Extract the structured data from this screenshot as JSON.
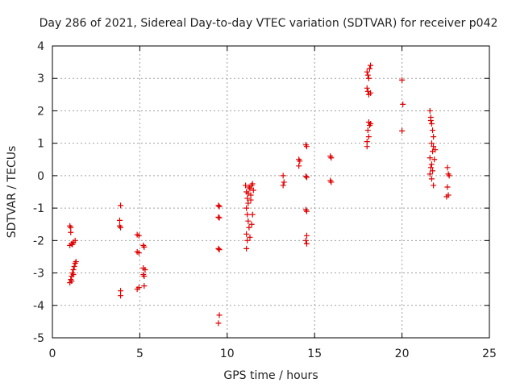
{
  "chart_data": {
    "type": "scatter",
    "title": "Day 286 of 2021, Sidereal Day-to-day VTEC variation (SDTVAR) for receiver p042",
    "xlabel": "GPS time / hours",
    "ylabel": "SDTVAR / TECUs",
    "xlim": [
      0,
      25
    ],
    "ylim": [
      -5,
      4
    ],
    "xticks": [
      0,
      5,
      10,
      15,
      20,
      25
    ],
    "yticks": [
      -5,
      -4,
      -3,
      -2,
      -1,
      0,
      1,
      2,
      3,
      4
    ],
    "grid": true,
    "marker": "+",
    "color": "#e00000",
    "series": [
      {
        "name": "p042",
        "points": [
          [
            1.0,
            -1.55
          ],
          [
            1.05,
            -1.6
          ],
          [
            1.05,
            -1.75
          ],
          [
            1.0,
            -2.15
          ],
          [
            1.1,
            -2.1
          ],
          [
            1.2,
            -2.05
          ],
          [
            1.3,
            -2.0
          ],
          [
            1.15,
            -2.12
          ],
          [
            1.0,
            -3.3
          ],
          [
            1.05,
            -3.2
          ],
          [
            1.1,
            -3.1
          ],
          [
            1.15,
            -3.0
          ],
          [
            1.2,
            -2.9
          ],
          [
            1.25,
            -2.8
          ],
          [
            1.3,
            -2.7
          ],
          [
            1.35,
            -2.65
          ],
          [
            1.1,
            -3.25
          ],
          [
            1.2,
            -3.05
          ],
          [
            3.9,
            -0.92
          ],
          [
            3.85,
            -1.38
          ],
          [
            3.9,
            -1.6
          ],
          [
            3.85,
            -1.55
          ],
          [
            3.9,
            -3.55
          ],
          [
            3.9,
            -3.7
          ],
          [
            4.85,
            -1.82
          ],
          [
            4.95,
            -1.85
          ],
          [
            4.85,
            -2.35
          ],
          [
            4.95,
            -2.38
          ],
          [
            5.2,
            -2.15
          ],
          [
            5.25,
            -2.2
          ],
          [
            4.85,
            -3.5
          ],
          [
            4.95,
            -3.45
          ],
          [
            5.2,
            -2.85
          ],
          [
            5.3,
            -2.9
          ],
          [
            5.2,
            -3.05
          ],
          [
            5.25,
            -3.1
          ],
          [
            5.25,
            -3.4
          ],
          [
            9.5,
            -0.92
          ],
          [
            9.55,
            -0.95
          ],
          [
            9.5,
            -1.28
          ],
          [
            9.55,
            -1.3
          ],
          [
            9.5,
            -2.25
          ],
          [
            9.55,
            -2.28
          ],
          [
            9.55,
            -4.3
          ],
          [
            9.5,
            -4.55
          ],
          [
            11.05,
            -0.3
          ],
          [
            11.1,
            -0.5
          ],
          [
            11.15,
            -0.7
          ],
          [
            11.2,
            -0.85
          ],
          [
            11.1,
            -1.0
          ],
          [
            11.15,
            -1.2
          ],
          [
            11.2,
            -1.4
          ],
          [
            11.25,
            -1.6
          ],
          [
            11.1,
            -1.8
          ],
          [
            11.15,
            -2.0
          ],
          [
            11.1,
            -2.25
          ],
          [
            11.3,
            -0.4
          ],
          [
            11.35,
            -0.6
          ],
          [
            11.4,
            -0.3
          ],
          [
            11.45,
            -1.2
          ],
          [
            11.4,
            -1.5
          ],
          [
            11.3,
            -1.9
          ],
          [
            11.25,
            -0.35
          ],
          [
            11.35,
            -0.75
          ],
          [
            11.2,
            -0.55
          ],
          [
            11.5,
            -0.45
          ],
          [
            11.45,
            -0.25
          ],
          [
            13.2,
            0.0
          ],
          [
            13.25,
            -0.2
          ],
          [
            13.2,
            -0.3
          ],
          [
            14.1,
            0.5
          ],
          [
            14.15,
            0.45
          ],
          [
            14.1,
            0.3
          ],
          [
            14.5,
            0.95
          ],
          [
            14.55,
            0.9
          ],
          [
            14.5,
            -0.02
          ],
          [
            14.55,
            -0.05
          ],
          [
            14.5,
            -1.05
          ],
          [
            14.55,
            -1.1
          ],
          [
            14.55,
            -1.85
          ],
          [
            14.5,
            -2.0
          ],
          [
            14.55,
            -2.1
          ],
          [
            15.9,
            0.6
          ],
          [
            15.95,
            0.55
          ],
          [
            15.9,
            -0.15
          ],
          [
            15.95,
            -0.2
          ],
          [
            18.0,
            3.2
          ],
          [
            18.05,
            3.1
          ],
          [
            18.1,
            3.0
          ],
          [
            18.15,
            3.3
          ],
          [
            18.2,
            3.4
          ],
          [
            18.0,
            2.7
          ],
          [
            18.05,
            2.6
          ],
          [
            18.1,
            2.5
          ],
          [
            18.2,
            2.55
          ],
          [
            18.1,
            1.65
          ],
          [
            18.15,
            1.55
          ],
          [
            18.05,
            1.4
          ],
          [
            18.1,
            1.2
          ],
          [
            18.0,
            1.05
          ],
          [
            18.0,
            0.9
          ],
          [
            18.2,
            1.6
          ],
          [
            20.0,
            2.95
          ],
          [
            20.05,
            2.2
          ],
          [
            20.0,
            1.38
          ],
          [
            21.6,
            2.0
          ],
          [
            21.65,
            1.8
          ],
          [
            21.7,
            1.6
          ],
          [
            21.75,
            1.4
          ],
          [
            21.8,
            1.2
          ],
          [
            21.7,
            1.0
          ],
          [
            21.8,
            0.9
          ],
          [
            21.75,
            0.75
          ],
          [
            21.6,
            0.55
          ],
          [
            21.7,
            0.35
          ],
          [
            21.75,
            0.15
          ],
          [
            21.6,
            0.05
          ],
          [
            21.7,
            -0.1
          ],
          [
            21.8,
            -0.3
          ],
          [
            21.65,
            0.25
          ],
          [
            21.85,
            0.5
          ],
          [
            21.9,
            0.8
          ],
          [
            21.65,
            1.7
          ],
          [
            22.6,
            0.25
          ],
          [
            22.65,
            0.05
          ],
          [
            22.7,
            0.0
          ],
          [
            22.6,
            -0.35
          ],
          [
            22.65,
            -0.6
          ],
          [
            22.55,
            -0.65
          ]
        ]
      }
    ]
  }
}
